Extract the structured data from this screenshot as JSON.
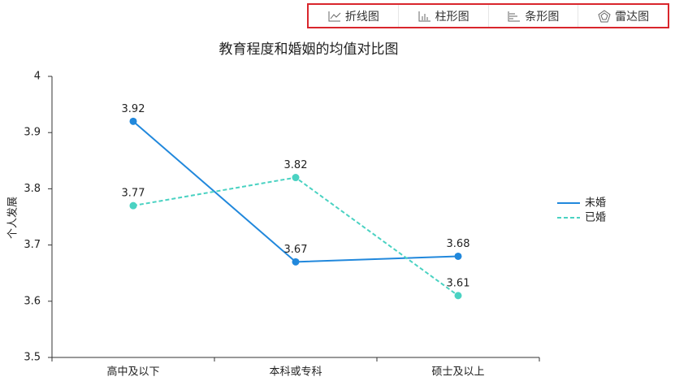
{
  "toolbar": {
    "buttons": [
      "折线图",
      "柱形图",
      "条形图",
      "雷达图"
    ]
  },
  "chart_data": {
    "type": "line",
    "title": "教育程度和婚姻的均值对比图",
    "y_label": "个人发展",
    "categories": [
      "高中及以下",
      "本科或专科",
      "硕士及以上"
    ],
    "series": [
      {
        "name": "未婚",
        "color": "#2188dc",
        "line_style": "solid",
        "values": [
          3.92,
          3.67,
          3.68
        ]
      },
      {
        "name": "已婚",
        "color": "#4ad2c2",
        "line_style": "dashed",
        "values": [
          3.77,
          3.82,
          3.61
        ]
      }
    ],
    "ylim": [
      3.5,
      4
    ],
    "yticks": [
      3.5,
      3.6,
      3.7,
      3.8,
      3.9,
      4
    ],
    "grid": false,
    "legend": "right"
  }
}
